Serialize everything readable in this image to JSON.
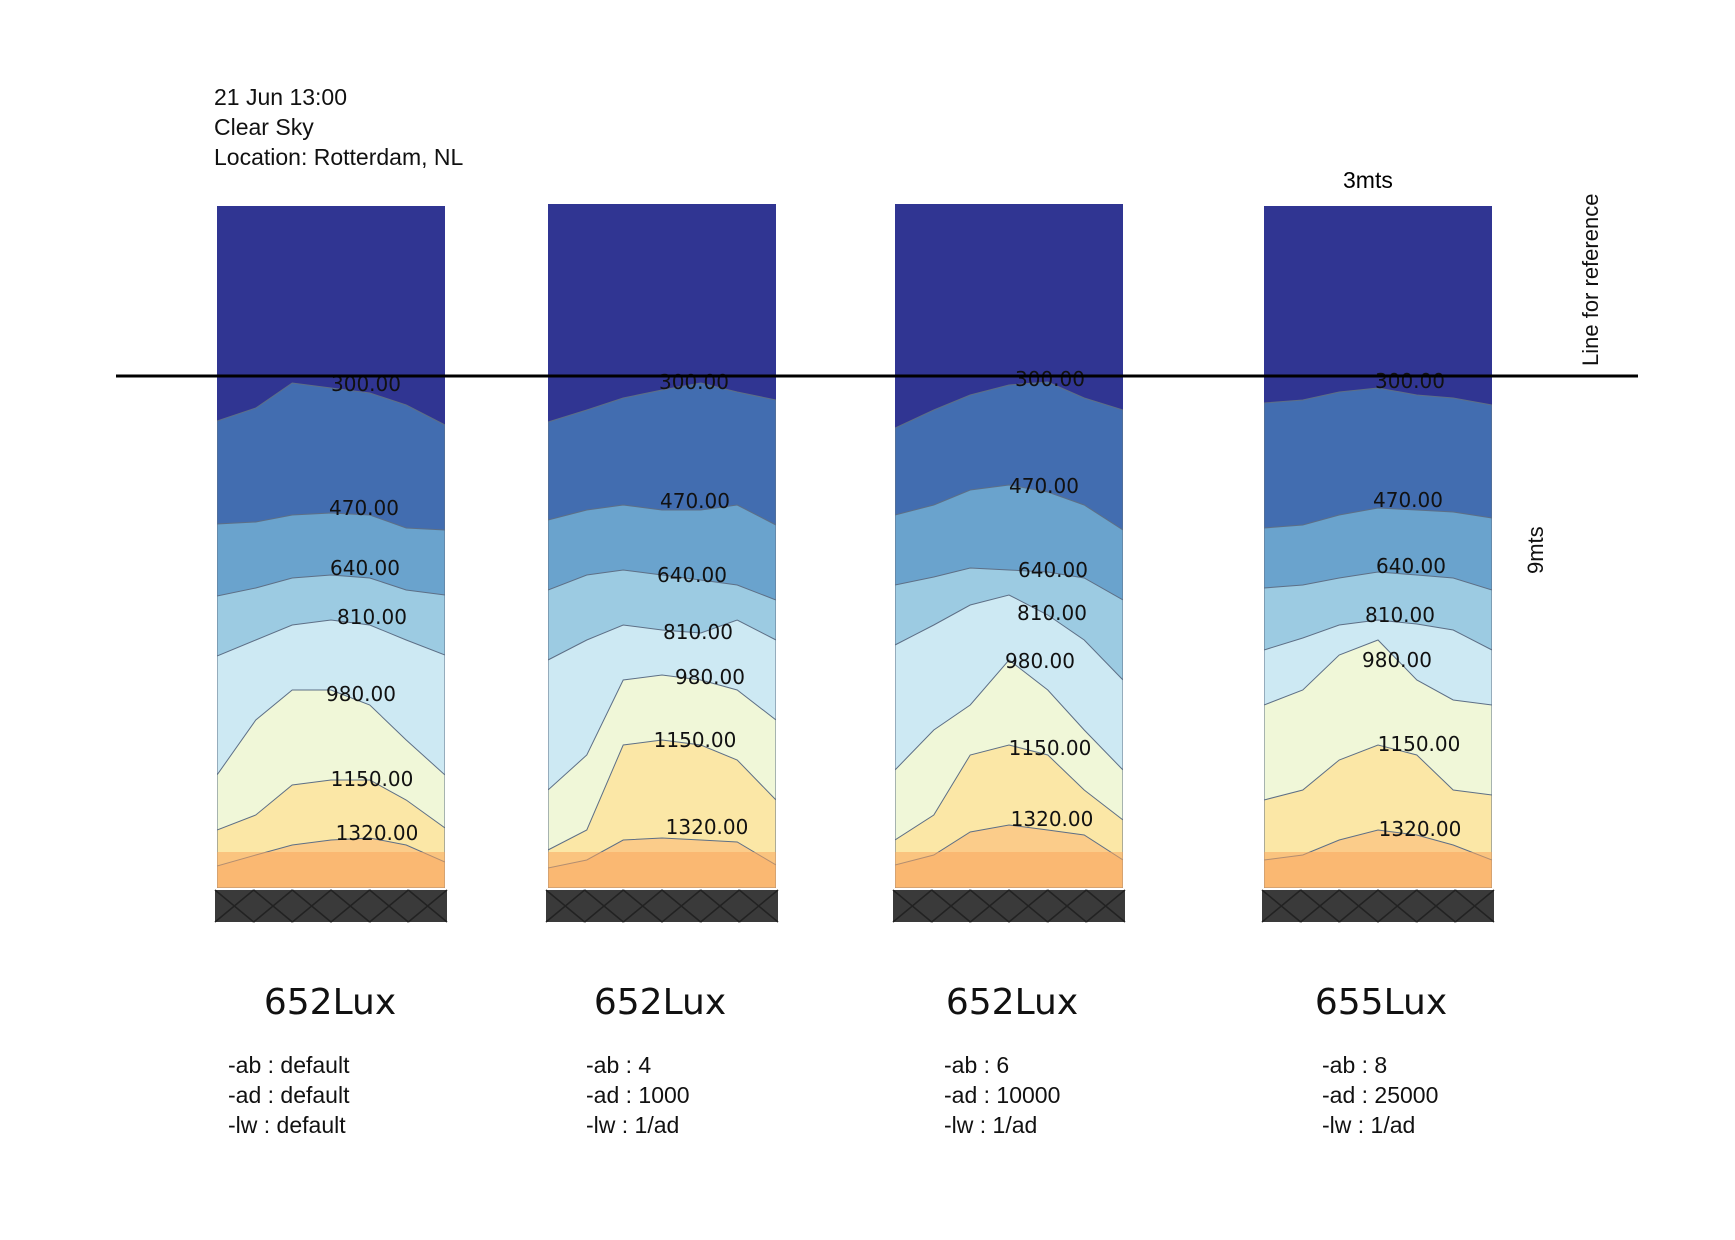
{
  "header": {
    "date_time": "21 Jun 13:00",
    "sky": "Clear Sky",
    "location": "Location: Rotterdam, NL"
  },
  "annotations": {
    "width_label": "3mts",
    "height_label": "9mts",
    "reference_line_label": "Line for reference"
  },
  "contour_levels": [
    "300.00",
    "470.00",
    "640.00",
    "810.00",
    "980.00",
    "1150.00",
    "1320.00"
  ],
  "colors": {
    "dark_blue": "#303592",
    "band_300": "#426db0",
    "band_470": "#6aa3cd",
    "band_640": "#9ccbe2",
    "band_810": "#cde9f3",
    "band_980": "#f0f7d8",
    "band_1150": "#fbe7a6",
    "band_1320": "#fbcc8a",
    "band_max": "#f9a85e",
    "base": "#3a3a3a"
  },
  "panels": [
    {
      "lux": "652Lux",
      "ab": "-ab : default",
      "ad": "-ad : default",
      "lw": "-lw : default"
    },
    {
      "lux": "652Lux",
      "ab": "-ab : 4",
      "ad": "-ad : 1000",
      "lw": "-lw : 1/ad"
    },
    {
      "lux": "652Lux",
      "ab": "-ab : 6",
      "ad": "-ad : 10000",
      "lw": "-lw : 1/ad"
    },
    {
      "lux": "655Lux",
      "ab": "-ab : 8",
      "ad": "-ad : 25000",
      "lw": "-lw : 1/ad"
    }
  ]
}
